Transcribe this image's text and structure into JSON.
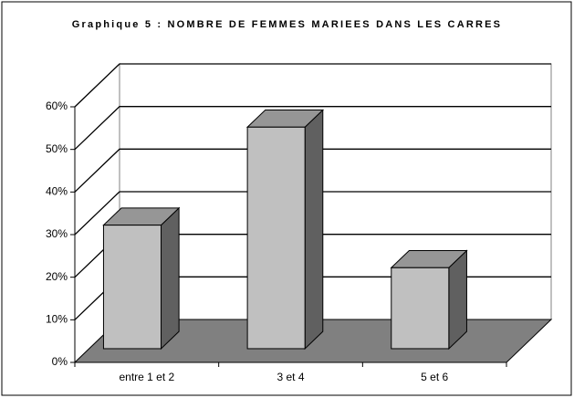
{
  "chart_data": {
    "type": "bar3d",
    "title": "Graphique 5 : NOMBRE DE FEMMES MARIEES DANS LES CARRES",
    "categories": [
      "entre 1 et 2",
      "3 et 4",
      "5 et 6"
    ],
    "values": [
      29,
      52,
      19
    ],
    "color": "#c0c0c0",
    "ylim": [
      0,
      60
    ],
    "yticks": [
      {
        "value": 0,
        "label": "0%"
      },
      {
        "value": 10,
        "label": "10%"
      },
      {
        "value": 20,
        "label": "20%"
      },
      {
        "value": 30,
        "label": "30%"
      },
      {
        "value": 40,
        "label": "40%"
      },
      {
        "value": 50,
        "label": "50%"
      },
      {
        "value": 60,
        "label": "60%"
      }
    ],
    "grid": true
  }
}
